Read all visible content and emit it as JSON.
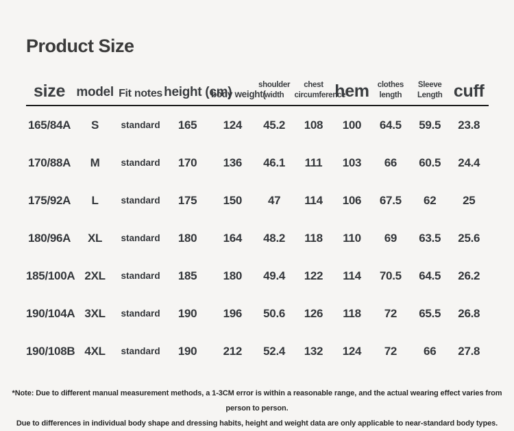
{
  "page": {
    "title": "Product Size",
    "notes": {
      "line1": "*Note: Due to different manual measurement methods, a 1-3CM error is within a reasonable range, and the actual wearing effect varies from person to person.",
      "line2": "Due to differences in individual body shape and dressing habits, height and weight data are only applicable to near-standard body types."
    }
  },
  "colors": {
    "background": "#f6f5f3",
    "text": "#34373b",
    "header_rule": "#1b1b1b"
  },
  "table": {
    "columns": [
      {
        "key": "size",
        "label": "size",
        "size": "xl"
      },
      {
        "key": "model",
        "label": "model",
        "size": "lg"
      },
      {
        "key": "fit-notes",
        "label": "Fit notes",
        "size": "md"
      },
      {
        "key": "height",
        "label": "height (cm)",
        "size": "lg"
      },
      {
        "key": "body-weight",
        "label": "body weight(",
        "size": "sm"
      },
      {
        "key": "shoulder-width",
        "label": "shoulder width",
        "size": "xs"
      },
      {
        "key": "chest-circumference",
        "label": "chest circumference",
        "size": "xs"
      },
      {
        "key": "hem",
        "label": "hem",
        "size": "xl"
      },
      {
        "key": "clothes-length",
        "label": "clothes length",
        "size": "xs"
      },
      {
        "key": "sleeve-length",
        "label": "Sleeve Length",
        "size": "xs"
      },
      {
        "key": "cuff",
        "label": "cuff",
        "size": "xl"
      }
    ],
    "rows": [
      [
        "165/84A",
        "S",
        "standard",
        "165",
        "124",
        "45.2",
        "108",
        "100",
        "64.5",
        "59.5",
        "23.8"
      ],
      [
        "170/88A",
        "M",
        "standard",
        "170",
        "136",
        "46.1",
        "111",
        "103",
        "66",
        "60.5",
        "24.4"
      ],
      [
        "175/92A",
        "L",
        "standard",
        "175",
        "150",
        "47",
        "114",
        "106",
        "67.5",
        "62",
        "25"
      ],
      [
        "180/96A",
        "XL",
        "standard",
        "180",
        "164",
        "48.2",
        "118",
        "110",
        "69",
        "63.5",
        "25.6"
      ],
      [
        "185/100A",
        "2XL",
        "standard",
        "185",
        "180",
        "49.4",
        "122",
        "114",
        "70.5",
        "64.5",
        "26.2"
      ],
      [
        "190/104A",
        "3XL",
        "standard",
        "190",
        "196",
        "50.6",
        "126",
        "118",
        "72",
        "65.5",
        "26.8"
      ],
      [
        "190/108B",
        "4XL",
        "standard",
        "190",
        "212",
        "52.4",
        "132",
        "124",
        "72",
        "66",
        "27.8"
      ]
    ]
  }
}
